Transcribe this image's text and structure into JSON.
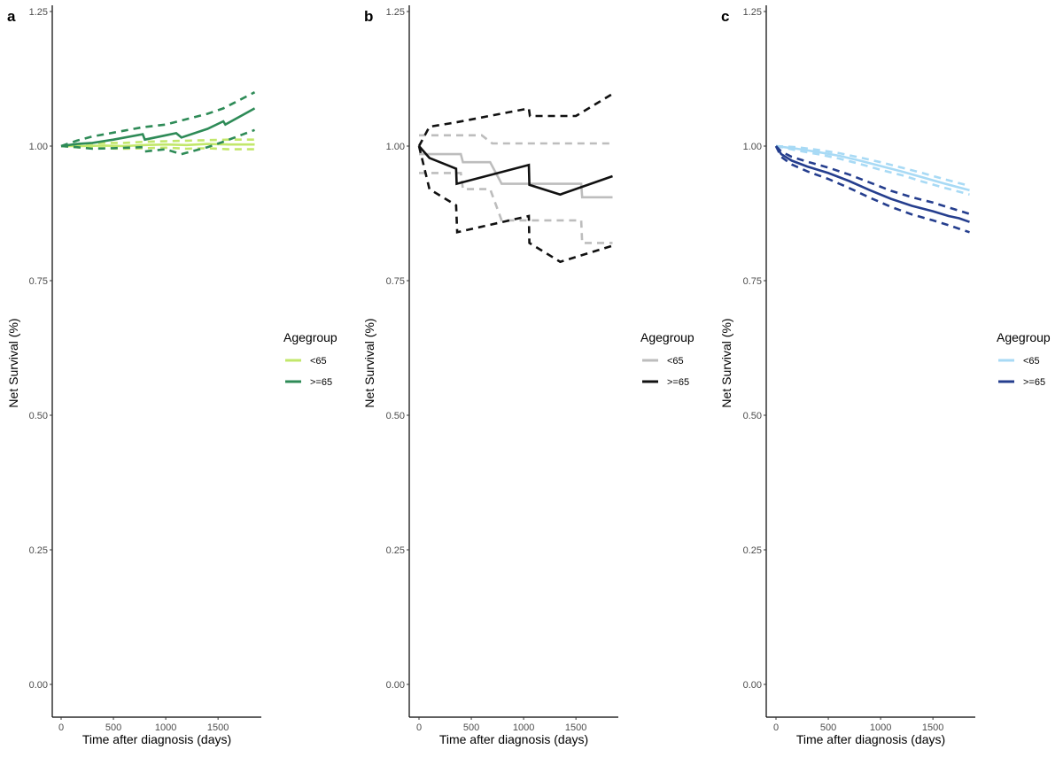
{
  "chart_data": [
    {
      "type": "line",
      "panel": "a",
      "title": "",
      "xlabel": "Time after diagnosis (days)",
      "ylabel": "Net Survival (%)",
      "xlim": [
        -80,
        1930
      ],
      "ylim": [
        -0.06,
        1.255
      ],
      "xticks": [
        0,
        500,
        1000,
        1500
      ],
      "xtick_labels": [
        "0",
        "500",
        "1000",
        "1500"
      ],
      "yticks": [
        0.0,
        0.25,
        0.5,
        0.75,
        1.0,
        1.25
      ],
      "ytick_labels": [
        "0.00",
        "0.25",
        "0.50",
        "0.75",
        "1.00",
        "1.25"
      ],
      "grid": false,
      "legend": {
        "title": "Agegroup",
        "placement": "right"
      },
      "series": [
        {
          "name": "<65",
          "color": "#c2e76b",
          "estimate": [
            [
              0,
              1.0
            ],
            [
              200,
              1.0
            ],
            [
              400,
              1.001
            ],
            [
              600,
              1.0
            ],
            [
              800,
              1.002
            ],
            [
              1000,
              1.003
            ],
            [
              1200,
              1.002
            ],
            [
              1400,
              1.004
            ],
            [
              1600,
              1.003
            ],
            [
              1850,
              1.003
            ]
          ],
          "upper": [
            [
              0,
              1.0
            ],
            [
              200,
              1.004
            ],
            [
              400,
              1.006
            ],
            [
              600,
              1.006
            ],
            [
              800,
              1.008
            ],
            [
              1000,
              1.009
            ],
            [
              1200,
              1.01
            ],
            [
              1400,
              1.011
            ],
            [
              1600,
              1.012
            ],
            [
              1850,
              1.012
            ]
          ],
          "lower": [
            [
              0,
              1.0
            ],
            [
              200,
              0.997
            ],
            [
              400,
              0.996
            ],
            [
              600,
              0.995
            ],
            [
              800,
              0.996
            ],
            [
              1000,
              0.997
            ],
            [
              1200,
              0.995
            ],
            [
              1400,
              0.996
            ],
            [
              1600,
              0.994
            ],
            [
              1850,
              0.994
            ]
          ]
        },
        {
          "name": ">=65",
          "color": "#2e8b57",
          "estimate": [
            [
              0,
              1.0
            ],
            [
              150,
              1.004
            ],
            [
              300,
              1.006
            ],
            [
              500,
              1.012
            ],
            [
              780,
              1.022
            ],
            [
              800,
              1.012
            ],
            [
              1000,
              1.02
            ],
            [
              1100,
              1.024
            ],
            [
              1150,
              1.016
            ],
            [
              1400,
              1.032
            ],
            [
              1550,
              1.046
            ],
            [
              1570,
              1.04
            ],
            [
              1850,
              1.07
            ]
          ],
          "upper": [
            [
              0,
              1.0
            ],
            [
              150,
              1.01
            ],
            [
              300,
              1.018
            ],
            [
              500,
              1.025
            ],
            [
              780,
              1.035
            ],
            [
              1000,
              1.04
            ],
            [
              1100,
              1.045
            ],
            [
              1400,
              1.06
            ],
            [
              1550,
              1.07
            ],
            [
              1850,
              1.1
            ]
          ],
          "lower": [
            [
              0,
              1.0
            ],
            [
              150,
              0.998
            ],
            [
              300,
              0.995
            ],
            [
              500,
              0.996
            ],
            [
              780,
              0.998
            ],
            [
              800,
              0.99
            ],
            [
              1000,
              0.994
            ],
            [
              1150,
              0.985
            ],
            [
              1400,
              0.998
            ],
            [
              1550,
              1.008
            ],
            [
              1850,
              1.03
            ]
          ]
        }
      ]
    },
    {
      "type": "line",
      "panel": "b",
      "title": "",
      "xlabel": "Time after diagnosis (days)",
      "ylabel": "Net Survival (%)",
      "xlim": [
        -80,
        1930
      ],
      "ylim": [
        -0.06,
        1.255
      ],
      "xticks": [
        0,
        500,
        1000,
        1500
      ],
      "xtick_labels": [
        "0",
        "500",
        "1000",
        "1500"
      ],
      "yticks": [
        0.0,
        0.25,
        0.5,
        0.75,
        1.0,
        1.25
      ],
      "ytick_labels": [
        "0.00",
        "0.25",
        "0.50",
        "0.75",
        "1.00",
        "1.25"
      ],
      "grid": false,
      "legend": {
        "title": "Agegroup",
        "placement": "right"
      },
      "series": [
        {
          "name": "<65",
          "color": "#bdbdbd",
          "estimate": [
            [
              0,
              0.985
            ],
            [
              400,
              0.985
            ],
            [
              420,
              0.97
            ],
            [
              680,
              0.97
            ],
            [
              790,
              0.93
            ],
            [
              1550,
              0.93
            ],
            [
              1560,
              0.905
            ],
            [
              1850,
              0.905
            ]
          ],
          "upper": [
            [
              0,
              1.02
            ],
            [
              600,
              1.02
            ],
            [
              700,
              1.005
            ],
            [
              1850,
              1.005
            ]
          ],
          "lower": [
            [
              0,
              0.95
            ],
            [
              400,
              0.95
            ],
            [
              420,
              0.92
            ],
            [
              680,
              0.92
            ],
            [
              790,
              0.862
            ],
            [
              1550,
              0.862
            ],
            [
              1560,
              0.82
            ],
            [
              1850,
              0.82
            ]
          ]
        },
        {
          "name": ">=65",
          "color": "#111111",
          "estimate": [
            [
              0,
              1.0
            ],
            [
              100,
              0.978
            ],
            [
              355,
              0.958
            ],
            [
              360,
              0.93
            ],
            [
              1050,
              0.965
            ],
            [
              1055,
              0.928
            ],
            [
              1350,
              0.91
            ],
            [
              1850,
              0.944
            ]
          ],
          "upper": [
            [
              0,
              1.0
            ],
            [
              50,
              1.018
            ],
            [
              100,
              1.036
            ],
            [
              355,
              1.044
            ],
            [
              1050,
              1.07
            ],
            [
              1060,
              1.056
            ],
            [
              1500,
              1.056
            ],
            [
              1850,
              1.097
            ]
          ],
          "lower": [
            [
              0,
              1.0
            ],
            [
              100,
              0.92
            ],
            [
              355,
              0.89
            ],
            [
              365,
              0.84
            ],
            [
              1050,
              0.87
            ],
            [
              1055,
              0.82
            ],
            [
              1350,
              0.785
            ],
            [
              1850,
              0.815
            ]
          ]
        }
      ]
    },
    {
      "type": "line",
      "panel": "c",
      "title": "",
      "xlabel": "Time after diagnosis (days)",
      "ylabel": "Net Survival (%)",
      "xlim": [
        -80,
        1930
      ],
      "ylim": [
        -0.06,
        1.255
      ],
      "xticks": [
        0,
        500,
        1000,
        1500
      ],
      "xtick_labels": [
        "0",
        "500",
        "1000",
        "1500"
      ],
      "yticks": [
        0.0,
        0.25,
        0.5,
        0.75,
        1.0,
        1.25
      ],
      "ytick_labels": [
        "0.00",
        "0.25",
        "0.50",
        "0.75",
        "1.00",
        "1.25"
      ],
      "grid": false,
      "legend": {
        "title": "Agegroup",
        "placement": "right"
      },
      "series": [
        {
          "name": "<65",
          "color": "#a8daf5",
          "estimate": [
            [
              0,
              1.0
            ],
            [
              200,
              0.995
            ],
            [
              400,
              0.989
            ],
            [
              600,
              0.982
            ],
            [
              800,
              0.973
            ],
            [
              1000,
              0.963
            ],
            [
              1200,
              0.953
            ],
            [
              1400,
              0.942
            ],
            [
              1600,
              0.931
            ],
            [
              1850,
              0.918
            ]
          ],
          "upper": [
            [
              0,
              1.0
            ],
            [
              200,
              0.998
            ],
            [
              400,
              0.993
            ],
            [
              600,
              0.987
            ],
            [
              800,
              0.979
            ],
            [
              1000,
              0.97
            ],
            [
              1200,
              0.96
            ],
            [
              1400,
              0.95
            ],
            [
              1600,
              0.939
            ],
            [
              1850,
              0.926
            ]
          ],
          "lower": [
            [
              0,
              1.0
            ],
            [
              200,
              0.992
            ],
            [
              400,
              0.985
            ],
            [
              600,
              0.977
            ],
            [
              800,
              0.967
            ],
            [
              1000,
              0.956
            ],
            [
              1200,
              0.946
            ],
            [
              1400,
              0.934
            ],
            [
              1600,
              0.923
            ],
            [
              1850,
              0.91
            ]
          ]
        },
        {
          "name": ">=65",
          "color": "#253e8e",
          "estimate": [
            [
              0,
              1.0
            ],
            [
              50,
              0.985
            ],
            [
              150,
              0.973
            ],
            [
              300,
              0.962
            ],
            [
              500,
              0.95
            ],
            [
              700,
              0.935
            ],
            [
              900,
              0.918
            ],
            [
              1100,
              0.902
            ],
            [
              1300,
              0.889
            ],
            [
              1500,
              0.879
            ],
            [
              1650,
              0.87
            ],
            [
              1750,
              0.866
            ],
            [
              1850,
              0.859
            ]
          ],
          "upper": [
            [
              0,
              1.0
            ],
            [
              50,
              0.99
            ],
            [
              150,
              0.98
            ],
            [
              300,
              0.971
            ],
            [
              500,
              0.96
            ],
            [
              700,
              0.947
            ],
            [
              900,
              0.932
            ],
            [
              1100,
              0.917
            ],
            [
              1300,
              0.905
            ],
            [
              1500,
              0.895
            ],
            [
              1650,
              0.886
            ],
            [
              1850,
              0.874
            ]
          ],
          "lower": [
            [
              0,
              1.0
            ],
            [
              50,
              0.98
            ],
            [
              150,
              0.966
            ],
            [
              300,
              0.953
            ],
            [
              500,
              0.939
            ],
            [
              700,
              0.922
            ],
            [
              900,
              0.904
            ],
            [
              1100,
              0.887
            ],
            [
              1300,
              0.873
            ],
            [
              1500,
              0.862
            ],
            [
              1650,
              0.853
            ],
            [
              1850,
              0.84
            ]
          ]
        }
      ]
    }
  ]
}
